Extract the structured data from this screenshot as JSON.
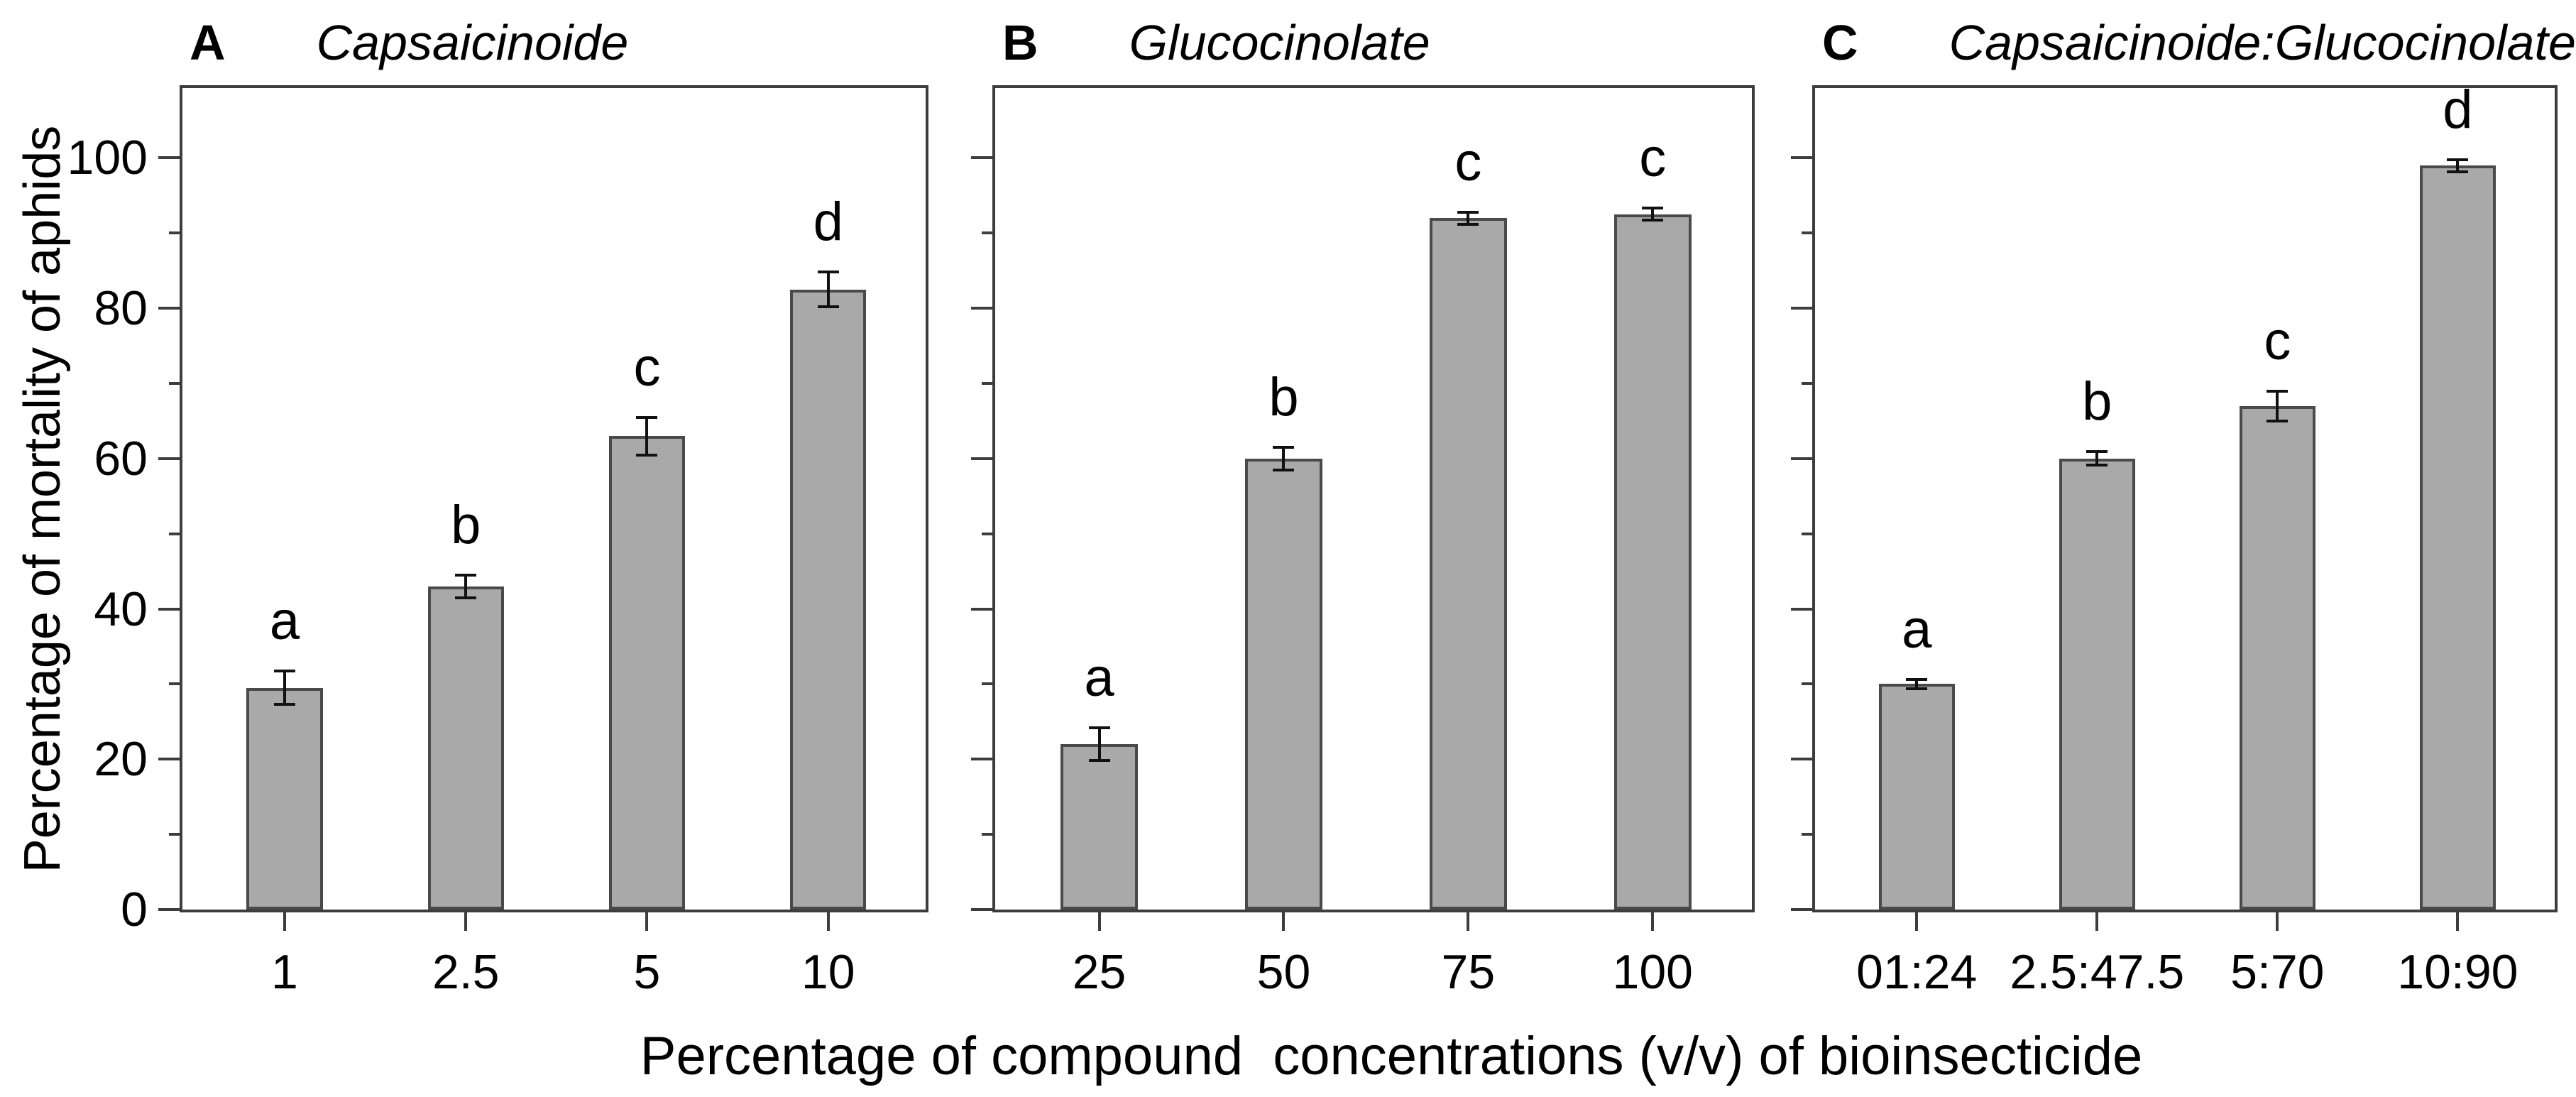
{
  "figure": {
    "ylabel": "Percentage of mortality of aphids",
    "xlabel": "Percentage of compound  concentrations (v/v) of bioinsecticide",
    "colors": {
      "background": "#ffffff",
      "text": "#000000",
      "axis": "#3d3d3d",
      "bar_fill": "#a9a9a9",
      "bar_border": "#4a4a4a",
      "error_bar": "#111111"
    }
  },
  "chart_data": [
    {
      "type": "bar",
      "panel_letter": "A",
      "title": "Capsaicinoide",
      "categories": [
        "1",
        "2.5",
        "5",
        "10"
      ],
      "values": [
        29.5,
        43,
        63,
        82.5
      ],
      "errors": [
        2.2,
        1.5,
        2.5,
        2.3
      ],
      "sig_letters": [
        "a",
        "b",
        "c",
        "d"
      ],
      "ylabel": "Percentage of mortality of aphids",
      "ylim": [
        0,
        100
      ],
      "yticks_major": [
        0,
        20,
        40,
        60,
        80,
        100
      ],
      "yticks_minor": [
        10,
        30,
        50,
        70,
        90
      ],
      "show_ytick_labels": true,
      "grid": false,
      "legend": "none"
    },
    {
      "type": "bar",
      "panel_letter": "B",
      "title": "Glucocinolate",
      "categories": [
        "25",
        "50",
        "75",
        "100"
      ],
      "values": [
        22,
        60,
        92,
        92.5
      ],
      "errors": [
        2.2,
        1.5,
        0.8,
        0.8
      ],
      "sig_letters": [
        "a",
        "b",
        "c",
        "c"
      ],
      "ylim": [
        0,
        100
      ],
      "yticks_major": [
        0,
        20,
        40,
        60,
        80,
        100
      ],
      "yticks_minor": [
        10,
        30,
        50,
        70,
        90
      ],
      "show_ytick_labels": false,
      "grid": false,
      "legend": "none"
    },
    {
      "type": "bar",
      "panel_letter": "C",
      "title": "Capsaicinoide:Glucocinolate",
      "categories": [
        "01:24",
        "2.5:47.5",
        "5:70",
        "10:90"
      ],
      "values": [
        30,
        60,
        67,
        99
      ],
      "errors": [
        0.6,
        0.9,
        2,
        0.8
      ],
      "sig_letters": [
        "a",
        "b",
        "c",
        "d"
      ],
      "ylim": [
        0,
        100
      ],
      "yticks_major": [
        0,
        20,
        40,
        60,
        80,
        100
      ],
      "yticks_minor": [
        10,
        30,
        50,
        70,
        90
      ],
      "show_ytick_labels": false,
      "grid": false,
      "legend": "none"
    }
  ]
}
